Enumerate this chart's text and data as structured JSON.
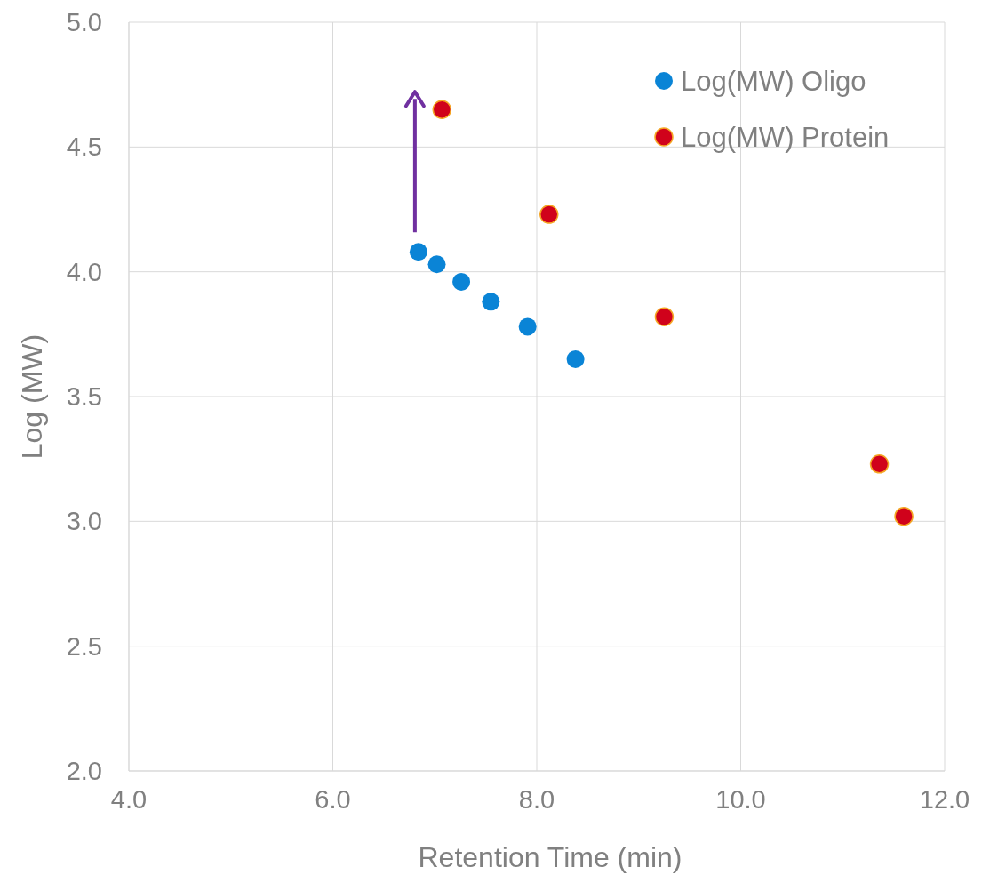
{
  "chart_data": {
    "type": "scatter",
    "xlabel": "Retention Time (min)",
    "ylabel": "Log (MW)",
    "xlim": [
      4,
      12
    ],
    "xticks": [
      {
        "value": 4,
        "label": "4.0"
      },
      {
        "value": 6,
        "label": "6.0"
      },
      {
        "value": 8,
        "label": "8.0"
      },
      {
        "value": 10,
        "label": "10.0"
      },
      {
        "value": 12,
        "label": "12.0"
      }
    ],
    "ylim": [
      2,
      5
    ],
    "yticks": [
      {
        "value": 2,
        "label": "2.0"
      },
      {
        "value": 2.5,
        "label": "2.5"
      },
      {
        "value": 3,
        "label": "3.0"
      },
      {
        "value": 3.5,
        "label": "3.5"
      },
      {
        "value": 4,
        "label": "4.0"
      },
      {
        "value": 4.5,
        "label": "4.5"
      },
      {
        "value": 5,
        "label": "5.0"
      }
    ],
    "grid": true,
    "legend": "top right",
    "marker": "circle",
    "series": [
      {
        "name": "Log(MW) Oligo",
        "color": "#0a84d6",
        "x": [
          6.84,
          7.02,
          7.26,
          7.55,
          7.91,
          8.38
        ],
        "values": [
          4.08,
          4.03,
          3.96,
          3.88,
          3.78,
          3.65
        ]
      },
      {
        "name": "Log(MW) Protein",
        "color": "#d0021b",
        "x": [
          7.07,
          8.12,
          9.25,
          11.36,
          11.6
        ],
        "values": [
          4.65,
          4.23,
          3.82,
          3.23,
          3.02
        ]
      }
    ]
  }
}
